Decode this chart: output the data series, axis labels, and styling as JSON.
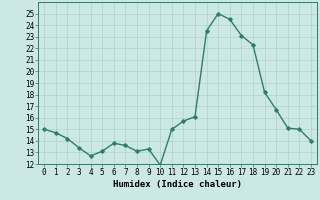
{
  "x": [
    0,
    1,
    2,
    3,
    4,
    5,
    6,
    7,
    8,
    9,
    10,
    11,
    12,
    13,
    14,
    15,
    16,
    17,
    18,
    19,
    20,
    21,
    22,
    23
  ],
  "y": [
    15.0,
    14.7,
    14.2,
    13.4,
    12.7,
    13.1,
    13.8,
    13.6,
    13.1,
    13.3,
    11.9,
    15.0,
    15.7,
    16.1,
    23.5,
    25.0,
    24.5,
    23.1,
    22.3,
    18.2,
    16.7,
    15.1,
    15.0,
    14.0
  ],
  "line_color": "#2e7d6e",
  "marker": "D",
  "marker_size": 1.8,
  "bg_color": "#cce8e4",
  "grid_color": "#aaccca",
  "xlabel": "Humidex (Indice chaleur)",
  "ylim": [
    12,
    26
  ],
  "xlim": [
    -0.5,
    23.5
  ],
  "yticks": [
    12,
    13,
    14,
    15,
    16,
    17,
    18,
    19,
    20,
    21,
    22,
    23,
    24,
    25
  ],
  "xticks": [
    0,
    1,
    2,
    3,
    4,
    5,
    6,
    7,
    8,
    9,
    10,
    11,
    12,
    13,
    14,
    15,
    16,
    17,
    18,
    19,
    20,
    21,
    22,
    23
  ],
  "xlabel_fontsize": 6.5,
  "tick_fontsize": 5.5,
  "line_width": 1.0
}
